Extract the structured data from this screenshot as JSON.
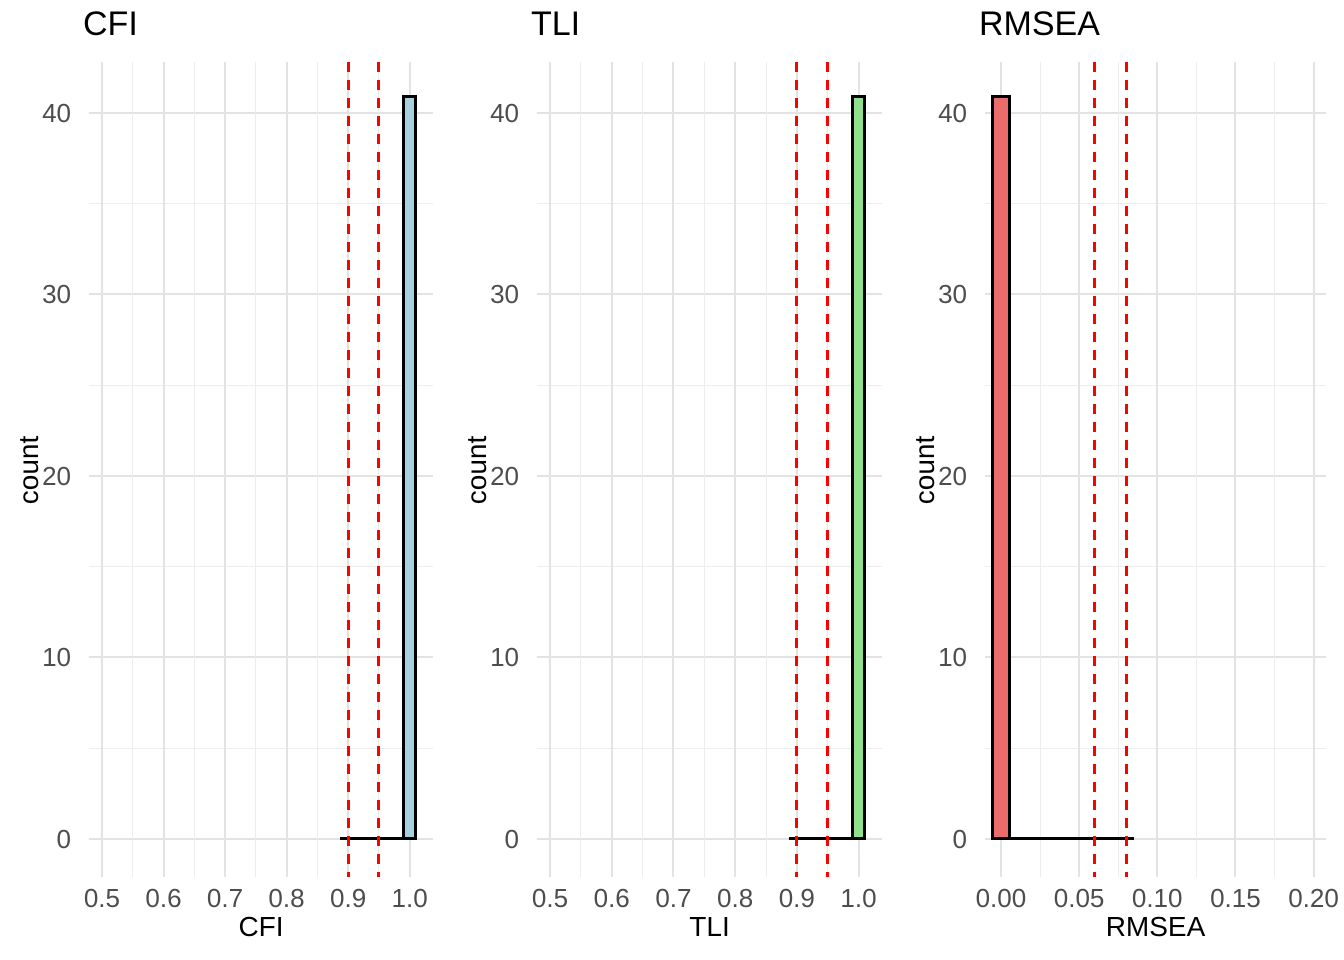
{
  "figure": {
    "background": "#ffffff",
    "text_color": "#000000",
    "tick_text_color": "#4d4d4d",
    "grid_major_color": "#e3e3e3",
    "grid_minor_color": "#ededed"
  },
  "chart_data": [
    {
      "type": "bar",
      "subtype": "histogram",
      "title": "CFI",
      "xlabel": "CFI",
      "ylabel": "count",
      "xlim": [
        0.479,
        1.038
      ],
      "ylim": [
        -2.1,
        42.8
      ],
      "x_tick_values": [
        0.5,
        0.6,
        0.7,
        0.8,
        0.9,
        1.0
      ],
      "x_tick_labels": [
        "0.5",
        "0.6",
        "0.7",
        "0.8",
        "0.9",
        "1.0"
      ],
      "x_minor_values": [
        0.55,
        0.65,
        0.75,
        0.85,
        0.95
      ],
      "y_tick_values": [
        0,
        10,
        20,
        30,
        40
      ],
      "y_tick_labels": [
        "0",
        "10",
        "20",
        "30",
        "40"
      ],
      "y_minor_values": [
        5,
        15,
        25,
        35
      ],
      "bars": [
        {
          "from": 0.9875,
          "to": 1.0125,
          "count": 41
        }
      ],
      "bar_fill": "#a8d0df",
      "bar_outline": "#000000",
      "baseline": {
        "from": 0.8875,
        "to": 1.0125
      },
      "vlines": [
        0.9,
        0.95
      ],
      "vline_color": "#ff0000",
      "grid": true,
      "legend": "none"
    },
    {
      "type": "bar",
      "subtype": "histogram",
      "title": "TLI",
      "xlabel": "TLI",
      "ylabel": "count",
      "xlim": [
        0.479,
        1.038
      ],
      "ylim": [
        -2.1,
        42.8
      ],
      "x_tick_values": [
        0.5,
        0.6,
        0.7,
        0.8,
        0.9,
        1.0
      ],
      "x_tick_labels": [
        "0.5",
        "0.6",
        "0.7",
        "0.8",
        "0.9",
        "1.0"
      ],
      "x_minor_values": [
        0.55,
        0.65,
        0.75,
        0.85,
        0.95
      ],
      "y_tick_values": [
        0,
        10,
        20,
        30,
        40
      ],
      "y_tick_labels": [
        "0",
        "10",
        "20",
        "30",
        "40"
      ],
      "y_minor_values": [
        5,
        15,
        25,
        35
      ],
      "bars": [
        {
          "from": 0.9875,
          "to": 1.0125,
          "count": 41
        }
      ],
      "bar_fill": "#8fe18c",
      "bar_outline": "#000000",
      "baseline": {
        "from": 0.8875,
        "to": 1.0125
      },
      "vlines": [
        0.9,
        0.95
      ],
      "vline_color": "#ff0000",
      "grid": true,
      "legend": "none"
    },
    {
      "type": "bar",
      "subtype": "histogram",
      "title": "RMSEA",
      "xlabel": "RMSEA",
      "ylabel": "count",
      "xlim": [
        -0.0102,
        0.208
      ],
      "ylim": [
        -2.1,
        42.8
      ],
      "x_tick_values": [
        0.0,
        0.05,
        0.1,
        0.15,
        0.2
      ],
      "x_tick_labels": [
        "0.00",
        "0.05",
        "0.10",
        "0.15",
        "0.20"
      ],
      "x_minor_values": [
        0.025,
        0.075,
        0.125,
        0.175
      ],
      "y_tick_values": [
        0,
        10,
        20,
        30,
        40
      ],
      "y_tick_labels": [
        "0",
        "10",
        "20",
        "30",
        "40"
      ],
      "y_minor_values": [
        5,
        15,
        25,
        35
      ],
      "bars": [
        {
          "from": -0.00625,
          "to": 0.00625,
          "count": 41
        }
      ],
      "bar_fill": "#ec6b6b",
      "bar_outline": "#000000",
      "baseline": {
        "from": -0.00625,
        "to": 0.085
      },
      "vlines": [
        0.06,
        0.08
      ],
      "vline_color": "#ff0000",
      "grid": true,
      "legend": "none"
    }
  ]
}
